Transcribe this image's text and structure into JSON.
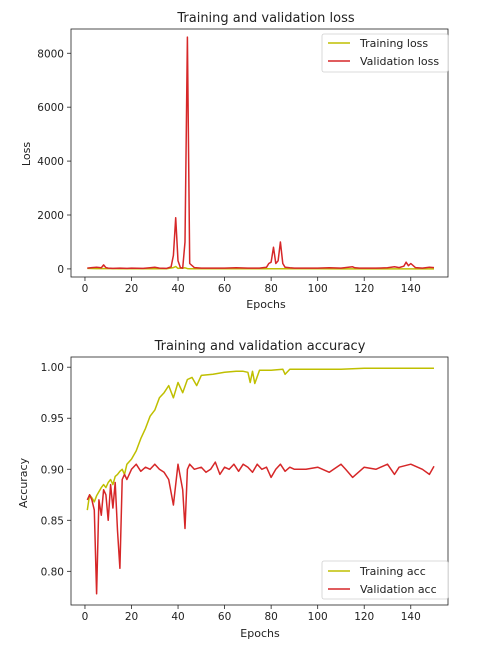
{
  "colors": {
    "train": "#bfbf00",
    "val": "#d62728"
  },
  "chart_data": [
    {
      "type": "line",
      "title": "Training and validation loss",
      "xlabel": "Epochs",
      "ylabel": "Loss",
      "xlim": [
        -6,
        156
      ],
      "ylim": [
        -300,
        8900
      ],
      "xticks": [
        0,
        20,
        40,
        60,
        80,
        100,
        120,
        140
      ],
      "yticks": [
        0,
        2000,
        4000,
        6000,
        8000
      ],
      "grid": false,
      "legend_position": "top-right",
      "series": [
        {
          "name": "Training loss",
          "color_key": "train",
          "x": [
            1,
            5,
            10,
            15,
            20,
            25,
            30,
            35,
            38,
            39,
            40,
            42,
            43,
            44,
            45,
            50,
            60,
            70,
            80,
            90,
            100,
            110,
            120,
            130,
            140,
            150
          ],
          "y": [
            20,
            12,
            10,
            8,
            6,
            5,
            5,
            5,
            50,
            90,
            20,
            30,
            40,
            10,
            5,
            4,
            3,
            3,
            3,
            3,
            3,
            2,
            2,
            2,
            2,
            2
          ]
        },
        {
          "name": "Validation loss",
          "color_key": "val",
          "x": [
            1,
            3,
            5,
            7,
            8,
            9,
            10,
            12,
            15,
            18,
            20,
            25,
            28,
            30,
            32,
            35,
            37,
            38,
            39,
            40,
            41,
            42,
            43,
            44,
            45,
            47,
            50,
            55,
            60,
            65,
            70,
            75,
            78,
            79,
            80,
            81,
            82,
            83,
            84,
            85,
            86,
            88,
            90,
            95,
            100,
            105,
            110,
            115,
            116,
            118,
            120,
            125,
            130,
            133,
            135,
            137,
            138,
            139,
            140,
            142,
            145,
            148,
            150
          ],
          "y": [
            30,
            50,
            60,
            40,
            150,
            50,
            30,
            20,
            30,
            20,
            30,
            20,
            40,
            60,
            30,
            20,
            80,
            500,
            1900,
            300,
            50,
            30,
            1000,
            8600,
            200,
            50,
            30,
            30,
            30,
            40,
            30,
            30,
            60,
            200,
            250,
            800,
            200,
            300,
            1000,
            200,
            60,
            40,
            30,
            30,
            30,
            40,
            30,
            80,
            40,
            30,
            30,
            30,
            40,
            80,
            50,
            100,
            250,
            120,
            200,
            50,
            30,
            60,
            50
          ]
        }
      ]
    },
    {
      "type": "line",
      "title": "Training and validation accuracy",
      "xlabel": "Epochs",
      "ylabel": "Accuracy",
      "xlim": [
        -6,
        156
      ],
      "ylim": [
        0.767,
        1.01
      ],
      "xticks": [
        0,
        20,
        40,
        60,
        80,
        100,
        120,
        140
      ],
      "yticks": [
        0.8,
        0.85,
        0.9,
        0.95,
        1.0
      ],
      "ytick_labels": [
        "0.80",
        "0.85",
        "0.90",
        "0.95",
        "1.00"
      ],
      "grid": false,
      "legend_position": "bottom-right",
      "series": [
        {
          "name": "Training acc",
          "color_key": "train",
          "x": [
            1,
            2,
            3,
            4,
            5,
            6,
            7,
            8,
            9,
            10,
            11,
            12,
            13,
            14,
            15,
            16,
            17,
            18,
            20,
            22,
            24,
            26,
            28,
            30,
            32,
            34,
            36,
            38,
            40,
            42,
            44,
            46,
            48,
            50,
            55,
            60,
            65,
            68,
            70,
            71,
            72,
            73,
            75,
            80,
            85,
            86,
            88,
            90,
            100,
            110,
            120,
            130,
            140,
            150
          ],
          "y": [
            0.86,
            0.875,
            0.872,
            0.868,
            0.874,
            0.878,
            0.882,
            0.885,
            0.882,
            0.887,
            0.89,
            0.885,
            0.893,
            0.895,
            0.898,
            0.9,
            0.895,
            0.905,
            0.91,
            0.918,
            0.93,
            0.94,
            0.952,
            0.958,
            0.97,
            0.975,
            0.982,
            0.97,
            0.985,
            0.975,
            0.988,
            0.99,
            0.982,
            0.992,
            0.993,
            0.995,
            0.996,
            0.996,
            0.995,
            0.985,
            0.996,
            0.984,
            0.997,
            0.997,
            0.998,
            0.993,
            0.998,
            0.998,
            0.998,
            0.998,
            0.999,
            0.999,
            0.999,
            0.999
          ]
        },
        {
          "name": "Validation acc",
          "color_key": "val",
          "x": [
            1,
            2,
            3,
            4,
            5,
            6,
            7,
            8,
            9,
            10,
            11,
            12,
            13,
            14,
            15,
            16,
            17,
            18,
            20,
            22,
            24,
            26,
            28,
            30,
            32,
            34,
            36,
            38,
            40,
            42,
            43,
            44,
            45,
            47,
            50,
            52,
            54,
            56,
            58,
            60,
            62,
            64,
            66,
            68,
            70,
            72,
            74,
            76,
            78,
            80,
            82,
            84,
            86,
            88,
            90,
            95,
            100,
            105,
            110,
            112,
            115,
            120,
            125,
            130,
            133,
            135,
            140,
            145,
            148,
            150
          ],
          "y": [
            0.87,
            0.875,
            0.87,
            0.86,
            0.778,
            0.87,
            0.855,
            0.88,
            0.875,
            0.85,
            0.885,
            0.862,
            0.887,
            0.84,
            0.803,
            0.89,
            0.895,
            0.89,
            0.9,
            0.905,
            0.898,
            0.902,
            0.9,
            0.905,
            0.9,
            0.897,
            0.89,
            0.865,
            0.905,
            0.88,
            0.842,
            0.9,
            0.905,
            0.9,
            0.902,
            0.897,
            0.9,
            0.907,
            0.895,
            0.902,
            0.9,
            0.905,
            0.898,
            0.905,
            0.902,
            0.897,
            0.905,
            0.9,
            0.902,
            0.892,
            0.9,
            0.905,
            0.898,
            0.902,
            0.9,
            0.9,
            0.902,
            0.897,
            0.905,
            0.9,
            0.892,
            0.902,
            0.9,
            0.905,
            0.895,
            0.902,
            0.905,
            0.9,
            0.895,
            0.903
          ]
        }
      ]
    }
  ]
}
